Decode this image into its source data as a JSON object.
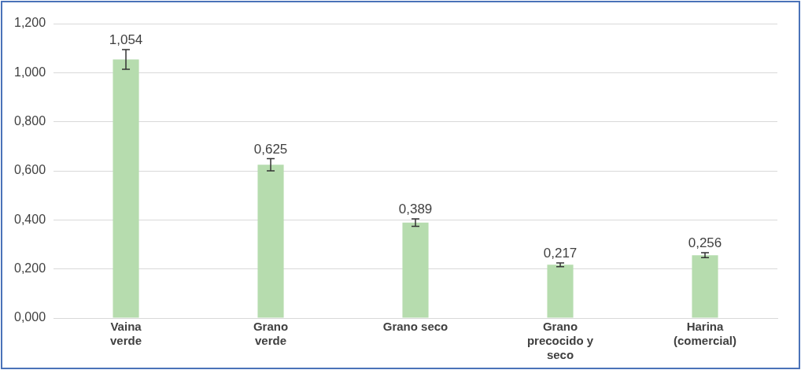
{
  "chart_data": {
    "type": "bar",
    "categories": [
      "Vaina\nverde",
      "Grano\nverde",
      "Grano seco",
      "Grano\nprecocido y\nseco",
      "Harina\n(comercial)"
    ],
    "values": [
      1.054,
      0.625,
      0.389,
      0.217,
      0.256
    ],
    "value_labels": [
      "1,054",
      "0,625",
      "0,389",
      "0,217",
      "0,256"
    ],
    "errors": [
      0.04,
      0.025,
      0.015,
      0.008,
      0.01
    ],
    "color": "#b6dcae",
    "ylim": [
      0,
      1.2
    ],
    "yticks": [
      {
        "value": 0,
        "label": "0,000"
      },
      {
        "value": 0.2,
        "label": "0,200"
      },
      {
        "value": 0.4,
        "label": "0,400"
      },
      {
        "value": 0.6,
        "label": "0,600"
      },
      {
        "value": 0.8,
        "label": "0,800"
      },
      {
        "value": 1.0,
        "label": "1,000"
      },
      {
        "value": 1.2,
        "label": "1,200"
      }
    ],
    "grid": "y",
    "legend": false
  }
}
